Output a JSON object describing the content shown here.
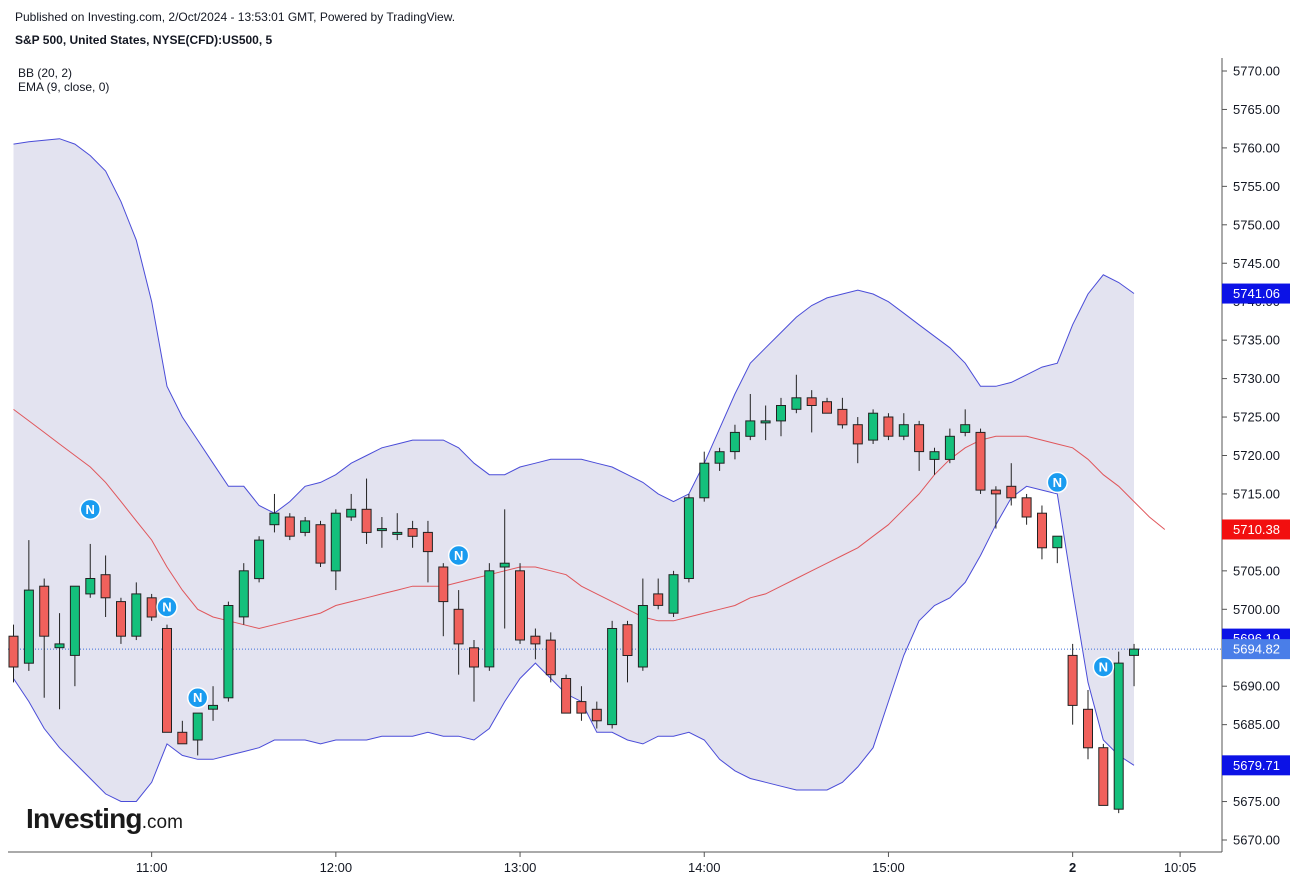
{
  "header": {
    "published": "Published on Investing.com, 2/Oct/2024 - 13:53:01 GMT, Powered by TradingView.",
    "symbol": "S&P 500, United States, NYSE(CFD):US500, 5"
  },
  "indicators": [
    "BB (20, 2)",
    "EMA (9, close, 0)"
  ],
  "logo": {
    "text": "Investing",
    "suffix": ".com"
  },
  "colors": {
    "up": "#14c07c",
    "down": "#f0615c",
    "bb_band": "#4a4cd8",
    "bb_fill": "#e3e3f0",
    "bb_basis": "#e0565b",
    "price_line": "#3d6ed8",
    "label_blue": "#0c12e6",
    "label_red": "#f20f0f",
    "label_current": "#4a7ee8",
    "event_marker": "#1a9cf0"
  },
  "chart_data": {
    "type": "candlestick",
    "y_axis": {
      "ylim": [
        5668,
        5773
      ],
      "ticks": [
        "5770.00",
        "5765.00",
        "5760.00",
        "5755.00",
        "5750.00",
        "5745.00",
        "5740.00",
        "5735.00",
        "5730.00",
        "5725.00",
        "5720.00",
        "5715.00",
        "5710.00",
        "5705.00",
        "5700.00",
        "5695.00",
        "5690.00",
        "5685.00",
        "5680.00",
        "5675.00",
        "5670.00"
      ],
      "tick_values": [
        5770,
        5765,
        5760,
        5755,
        5750,
        5745,
        5740,
        5735,
        5730,
        5725,
        5720,
        5715,
        5710,
        5705,
        5700,
        5695,
        5690,
        5685,
        5680,
        5675,
        5670
      ]
    },
    "x_axis": {
      "ticks": [
        {
          "label": "11:00",
          "index": 9
        },
        {
          "label": "12:00",
          "index": 21
        },
        {
          "label": "13:00",
          "index": 33
        },
        {
          "label": "14:00",
          "index": 45
        },
        {
          "label": "15:00",
          "index": 57
        },
        {
          "label": "2",
          "index": 69,
          "bold": true
        },
        {
          "label": "10:05",
          "index": 76
        }
      ]
    },
    "candles": [
      {
        "o": 5696.5,
        "h": 5698.0,
        "l": 5690.5,
        "c": 5692.5
      },
      {
        "o": 5693.0,
        "h": 5709.0,
        "l": 5692.0,
        "c": 5702.5
      },
      {
        "o": 5703.0,
        "h": 5704.0,
        "l": 5688.5,
        "c": 5696.5
      },
      {
        "o": 5695.0,
        "h": 5699.5,
        "l": 5687.0,
        "c": 5695.5
      },
      {
        "o": 5694.0,
        "h": 5703.0,
        "l": 5690.0,
        "c": 5703.0
      },
      {
        "o": 5702.0,
        "h": 5708.5,
        "l": 5701.5,
        "c": 5704.0
      },
      {
        "o": 5704.5,
        "h": 5707.0,
        "l": 5699.0,
        "c": 5701.5
      },
      {
        "o": 5701.0,
        "h": 5701.5,
        "l": 5695.5,
        "c": 5696.5
      },
      {
        "o": 5696.5,
        "h": 5703.5,
        "l": 5696.0,
        "c": 5702.0
      },
      {
        "o": 5701.5,
        "h": 5702.0,
        "l": 5698.5,
        "c": 5699.0
      },
      {
        "o": 5697.5,
        "h": 5698.0,
        "l": 5684.0,
        "c": 5684.0
      },
      {
        "o": 5684.0,
        "h": 5685.5,
        "l": 5682.5,
        "c": 5682.5
      },
      {
        "o": 5683.0,
        "h": 5686.5,
        "l": 5681.0,
        "c": 5686.5
      },
      {
        "o": 5687.0,
        "h": 5690.0,
        "l": 5685.5,
        "c": 5687.5
      },
      {
        "o": 5688.5,
        "h": 5701.0,
        "l": 5688.0,
        "c": 5700.5
      },
      {
        "o": 5699.0,
        "h": 5706.0,
        "l": 5698.0,
        "c": 5705.0
      },
      {
        "o": 5704.0,
        "h": 5709.5,
        "l": 5703.5,
        "c": 5709.0
      },
      {
        "o": 5711.0,
        "h": 5715.0,
        "l": 5710.0,
        "c": 5712.5
      },
      {
        "o": 5712.0,
        "h": 5712.5,
        "l": 5709.0,
        "c": 5709.5
      },
      {
        "o": 5710.0,
        "h": 5712.0,
        "l": 5709.5,
        "c": 5711.5
      },
      {
        "o": 5711.0,
        "h": 5711.5,
        "l": 5705.5,
        "c": 5706.0
      },
      {
        "o": 5705.0,
        "h": 5713.0,
        "l": 5702.5,
        "c": 5712.5
      },
      {
        "o": 5712.0,
        "h": 5715.0,
        "l": 5711.5,
        "c": 5713.0
      },
      {
        "o": 5713.0,
        "h": 5717.0,
        "l": 5708.5,
        "c": 5710.0
      },
      {
        "o": 5710.5,
        "h": 5712.0,
        "l": 5708.0,
        "c": 5710.5
      },
      {
        "o": 5710.0,
        "h": 5712.5,
        "l": 5709.0,
        "c": 5710.0
      },
      {
        "o": 5710.5,
        "h": 5711.5,
        "l": 5708.0,
        "c": 5709.5
      },
      {
        "o": 5710.0,
        "h": 5711.5,
        "l": 5703.5,
        "c": 5707.5
      },
      {
        "o": 5705.5,
        "h": 5706.0,
        "l": 5696.5,
        "c": 5701.0
      },
      {
        "o": 5700.0,
        "h": 5702.5,
        "l": 5691.5,
        "c": 5695.5
      },
      {
        "o": 5695.0,
        "h": 5696.0,
        "l": 5688.0,
        "c": 5692.5
      },
      {
        "o": 5692.5,
        "h": 5706.0,
        "l": 5692.0,
        "c": 5705.0
      },
      {
        "o": 5705.5,
        "h": 5713.0,
        "l": 5697.5,
        "c": 5706.0
      },
      {
        "o": 5705.0,
        "h": 5706.0,
        "l": 5695.5,
        "c": 5696.0
      },
      {
        "o": 5696.5,
        "h": 5697.5,
        "l": 5693.5,
        "c": 5695.5
      },
      {
        "o": 5696.0,
        "h": 5697.0,
        "l": 5690.5,
        "c": 5691.5
      },
      {
        "o": 5691.0,
        "h": 5691.5,
        "l": 5686.5,
        "c": 5686.5
      },
      {
        "o": 5688.0,
        "h": 5690.0,
        "l": 5685.5,
        "c": 5686.5
      },
      {
        "o": 5687.0,
        "h": 5688.0,
        "l": 5684.5,
        "c": 5685.5
      },
      {
        "o": 5685.0,
        "h": 5698.5,
        "l": 5684.5,
        "c": 5697.5
      },
      {
        "o": 5698.0,
        "h": 5698.5,
        "l": 5690.5,
        "c": 5694.0
      },
      {
        "o": 5692.5,
        "h": 5704.0,
        "l": 5692.0,
        "c": 5700.5
      },
      {
        "o": 5702.0,
        "h": 5704.0,
        "l": 5700.0,
        "c": 5700.5
      },
      {
        "o": 5699.5,
        "h": 5705.0,
        "l": 5699.0,
        "c": 5704.5
      },
      {
        "o": 5704.0,
        "h": 5715.0,
        "l": 5703.5,
        "c": 5714.5
      },
      {
        "o": 5714.5,
        "h": 5720.5,
        "l": 5714.0,
        "c": 5719.0
      },
      {
        "o": 5719.0,
        "h": 5721.0,
        "l": 5718.0,
        "c": 5720.5
      },
      {
        "o": 5720.5,
        "h": 5724.0,
        "l": 5719.5,
        "c": 5723.0
      },
      {
        "o": 5722.5,
        "h": 5728.0,
        "l": 5722.0,
        "c": 5724.5
      },
      {
        "o": 5724.5,
        "h": 5726.5,
        "l": 5722.0,
        "c": 5724.5
      },
      {
        "o": 5724.5,
        "h": 5727.5,
        "l": 5722.5,
        "c": 5726.5
      },
      {
        "o": 5726.0,
        "h": 5730.5,
        "l": 5725.5,
        "c": 5727.5
      },
      {
        "o": 5727.5,
        "h": 5728.5,
        "l": 5723.0,
        "c": 5726.5
      },
      {
        "o": 5727.0,
        "h": 5727.5,
        "l": 5725.5,
        "c": 5725.5
      },
      {
        "o": 5726.0,
        "h": 5727.5,
        "l": 5723.5,
        "c": 5724.0
      },
      {
        "o": 5724.0,
        "h": 5725.0,
        "l": 5719.0,
        "c": 5721.5
      },
      {
        "o": 5722.0,
        "h": 5726.0,
        "l": 5721.5,
        "c": 5725.5
      },
      {
        "o": 5725.0,
        "h": 5725.5,
        "l": 5722.0,
        "c": 5722.5
      },
      {
        "o": 5722.5,
        "h": 5725.5,
        "l": 5722.0,
        "c": 5724.0
      },
      {
        "o": 5724.0,
        "h": 5724.5,
        "l": 5718.0,
        "c": 5720.5
      },
      {
        "o": 5719.5,
        "h": 5721.0,
        "l": 5717.5,
        "c": 5720.5
      },
      {
        "o": 5719.5,
        "h": 5723.5,
        "l": 5719.0,
        "c": 5722.5
      },
      {
        "o": 5723.0,
        "h": 5726.0,
        "l": 5722.5,
        "c": 5724.0
      },
      {
        "o": 5723.0,
        "h": 5723.5,
        "l": 5715.0,
        "c": 5715.5
      },
      {
        "o": 5715.5,
        "h": 5716.0,
        "l": 5710.5,
        "c": 5715.0
      },
      {
        "o": 5716.0,
        "h": 5719.0,
        "l": 5713.5,
        "c": 5714.5
      },
      {
        "o": 5714.5,
        "h": 5715.0,
        "l": 5711.0,
        "c": 5712.0
      },
      {
        "o": 5712.5,
        "h": 5713.5,
        "l": 5706.5,
        "c": 5708.0
      },
      {
        "o": 5708.0,
        "h": 5709.5,
        "l": 5706.0,
        "c": 5709.5
      },
      {
        "o": 5694.0,
        "h": 5695.5,
        "l": 5685.0,
        "c": 5687.5
      },
      {
        "o": 5687.0,
        "h": 5689.5,
        "l": 5680.5,
        "c": 5682.0
      },
      {
        "o": 5682.0,
        "h": 5682.5,
        "l": 5674.5,
        "c": 5674.5
      },
      {
        "o": 5674.0,
        "h": 5694.5,
        "l": 5673.5,
        "c": 5693.0
      },
      {
        "o": 5694.0,
        "h": 5695.5,
        "l": 5690.0,
        "c": 5694.82
      }
    ],
    "series": [
      {
        "name": "BB (20, 2)",
        "band": "upper",
        "values": [
          5760.5,
          5760.8,
          5761,
          5761.2,
          5760.5,
          5759,
          5757,
          5753,
          5748,
          5740,
          5729,
          5725,
          5722,
          5719,
          5716,
          5716,
          5713.5,
          5712.5,
          5714,
          5716,
          5716.5,
          5717.5,
          5719,
          5720,
          5721,
          5721.5,
          5722,
          5722,
          5722,
          5721,
          5719,
          5717.5,
          5717.5,
          5718.5,
          5719,
          5719.5,
          5719.5,
          5719.5,
          5719,
          5718.5,
          5717.5,
          5716.5,
          5715,
          5714,
          5715,
          5719,
          5723.5,
          5728,
          5732,
          5734,
          5736,
          5738,
          5739.5,
          5740.5,
          5741,
          5741.5,
          5741,
          5740,
          5738.5,
          5737,
          5735.5,
          5734,
          5732,
          5729,
          5729,
          5729.5,
          5730.5,
          5731.5,
          5732,
          5737,
          5741,
          5743.5,
          5742.5,
          5741.06
        ]
      },
      {
        "name": "BB (20, 2)",
        "band": "lower",
        "values": [
          5691,
          5688,
          5684.5,
          5682,
          5680,
          5678,
          5676,
          5675,
          5675,
          5677.5,
          5682.5,
          5681,
          5680.5,
          5680.5,
          5681,
          5681.5,
          5682,
          5683,
          5683,
          5683,
          5682.5,
          5683,
          5683,
          5683,
          5683.5,
          5683.5,
          5683.5,
          5684,
          5683.5,
          5683.5,
          5683,
          5684.5,
          5688,
          5691,
          5693,
          5691,
          5689,
          5688,
          5684,
          5684,
          5683,
          5682.5,
          5683.5,
          5683.5,
          5684,
          5683,
          5680.5,
          5679,
          5678,
          5677.5,
          5677,
          5676.5,
          5676.5,
          5676.5,
          5677.5,
          5679.5,
          5682,
          5688,
          5694,
          5698.5,
          5700.5,
          5701.5,
          5703.5,
          5707,
          5711,
          5714.5,
          5716,
          5715.5,
          5715,
          5702.5,
          5690.5,
          5683,
          5681,
          5679.71
        ]
      },
      {
        "name": "BB (20, 2)",
        "band": "basis",
        "values": [
          5726,
          5724.5,
          5723,
          5721.5,
          5720,
          5718.5,
          5716.5,
          5714,
          5711.5,
          5709,
          5705.5,
          5702.5,
          5700,
          5699,
          5698.5,
          5698,
          5697.5,
          5698,
          5698.5,
          5699,
          5699.5,
          5700.5,
          5701,
          5701.5,
          5702,
          5702.5,
          5703,
          5703,
          5703,
          5703.5,
          5704,
          5704.5,
          5705,
          5705.5,
          5705.5,
          5705,
          5704.5,
          5703,
          5702,
          5701,
          5700,
          5699,
          5698.5,
          5698.5,
          5699,
          5699.5,
          5700,
          5700.5,
          5701.5,
          5702,
          5703,
          5704,
          5705,
          5706,
          5707,
          5708,
          5709.5,
          5711,
          5713,
          5715,
          5717.5,
          5719.5,
          5721,
          5722,
          5722.5,
          5722.5,
          5722.5,
          5722,
          5721.5,
          5721,
          5719.5,
          5717.5,
          5716,
          5714,
          5712,
          5710.38
        ]
      }
    ],
    "current_price": 5694.82,
    "price_labels": [
      {
        "text": "5741.06",
        "value": 5741.06,
        "role": "bb_upper"
      },
      {
        "text": "5710.38",
        "value": 5710.38,
        "role": "bb_basis"
      },
      {
        "text": "5696.19",
        "value": 5696.19,
        "role": "ema"
      },
      {
        "text": "5694.82",
        "value": 5694.82,
        "role": "price"
      },
      {
        "text": "5679.71",
        "value": 5679.71,
        "role": "bb_lower"
      }
    ],
    "event_markers": [
      {
        "label": "N",
        "index": 5,
        "value": 5713.0
      },
      {
        "label": "N",
        "index": 10,
        "value": 5700.3
      },
      {
        "label": "N",
        "index": 12,
        "value": 5688.5
      },
      {
        "label": "N",
        "index": 29,
        "value": 5707.0
      },
      {
        "label": "N",
        "index": 68,
        "value": 5716.5
      },
      {
        "label": "N",
        "index": 71,
        "value": 5692.5
      }
    ]
  }
}
